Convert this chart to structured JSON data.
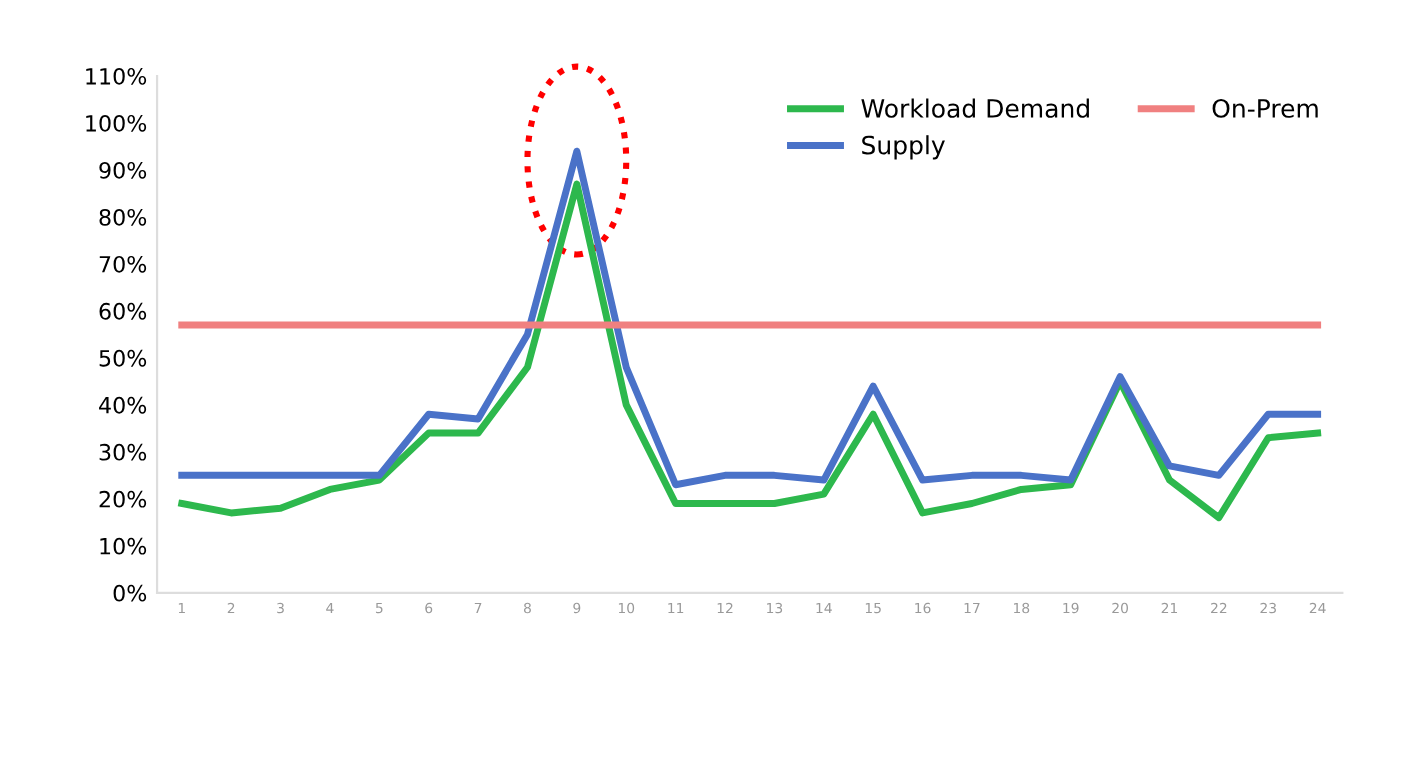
{
  "chart_data": {
    "type": "line",
    "categories": [
      "1",
      "2",
      "3",
      "4",
      "5",
      "6",
      "7",
      "8",
      "9",
      "10",
      "11",
      "12",
      "13",
      "14",
      "15",
      "16",
      "17",
      "18",
      "19",
      "20",
      "21",
      "22",
      "23",
      "24"
    ],
    "series": [
      {
        "name": "Workload Demand",
        "color": "#2db84d",
        "values": [
          19,
          17,
          18,
          22,
          24,
          34,
          34,
          48,
          87,
          40,
          19,
          19,
          19,
          21,
          38,
          17,
          19,
          22,
          23,
          45,
          24,
          16,
          33,
          34
        ]
      },
      {
        "name": "Supply",
        "color": "#4a72c8",
        "values": [
          25,
          25,
          25,
          25,
          25,
          38,
          37,
          55,
          94,
          48,
          23,
          25,
          25,
          24,
          44,
          24,
          25,
          25,
          24,
          46,
          27,
          25,
          38,
          38
        ]
      },
      {
        "name": "On-Prem",
        "color": "#f08080",
        "values": [
          57,
          57,
          57,
          57,
          57,
          57,
          57,
          57,
          57,
          57,
          57,
          57,
          57,
          57,
          57,
          57,
          57,
          57,
          57,
          57,
          57,
          57,
          57,
          57
        ]
      }
    ],
    "ylim": [
      0,
      110
    ],
    "yticks": [
      {
        "value": 0,
        "label": "0%"
      },
      {
        "value": 10,
        "label": "10%"
      },
      {
        "value": 20,
        "label": "20%"
      },
      {
        "value": 30,
        "label": "30%"
      },
      {
        "value": 40,
        "label": "40%"
      },
      {
        "value": 50,
        "label": "50%"
      },
      {
        "value": 60,
        "label": "60%"
      },
      {
        "value": 70,
        "label": "70%"
      },
      {
        "value": 80,
        "label": "80%"
      },
      {
        "value": 90,
        "label": "90%"
      },
      {
        "value": 100,
        "label": "100%"
      },
      {
        "value": 110,
        "label": "110%"
      }
    ],
    "grid": false,
    "legend": "top right",
    "marker": "none",
    "line_style": "solid"
  }
}
